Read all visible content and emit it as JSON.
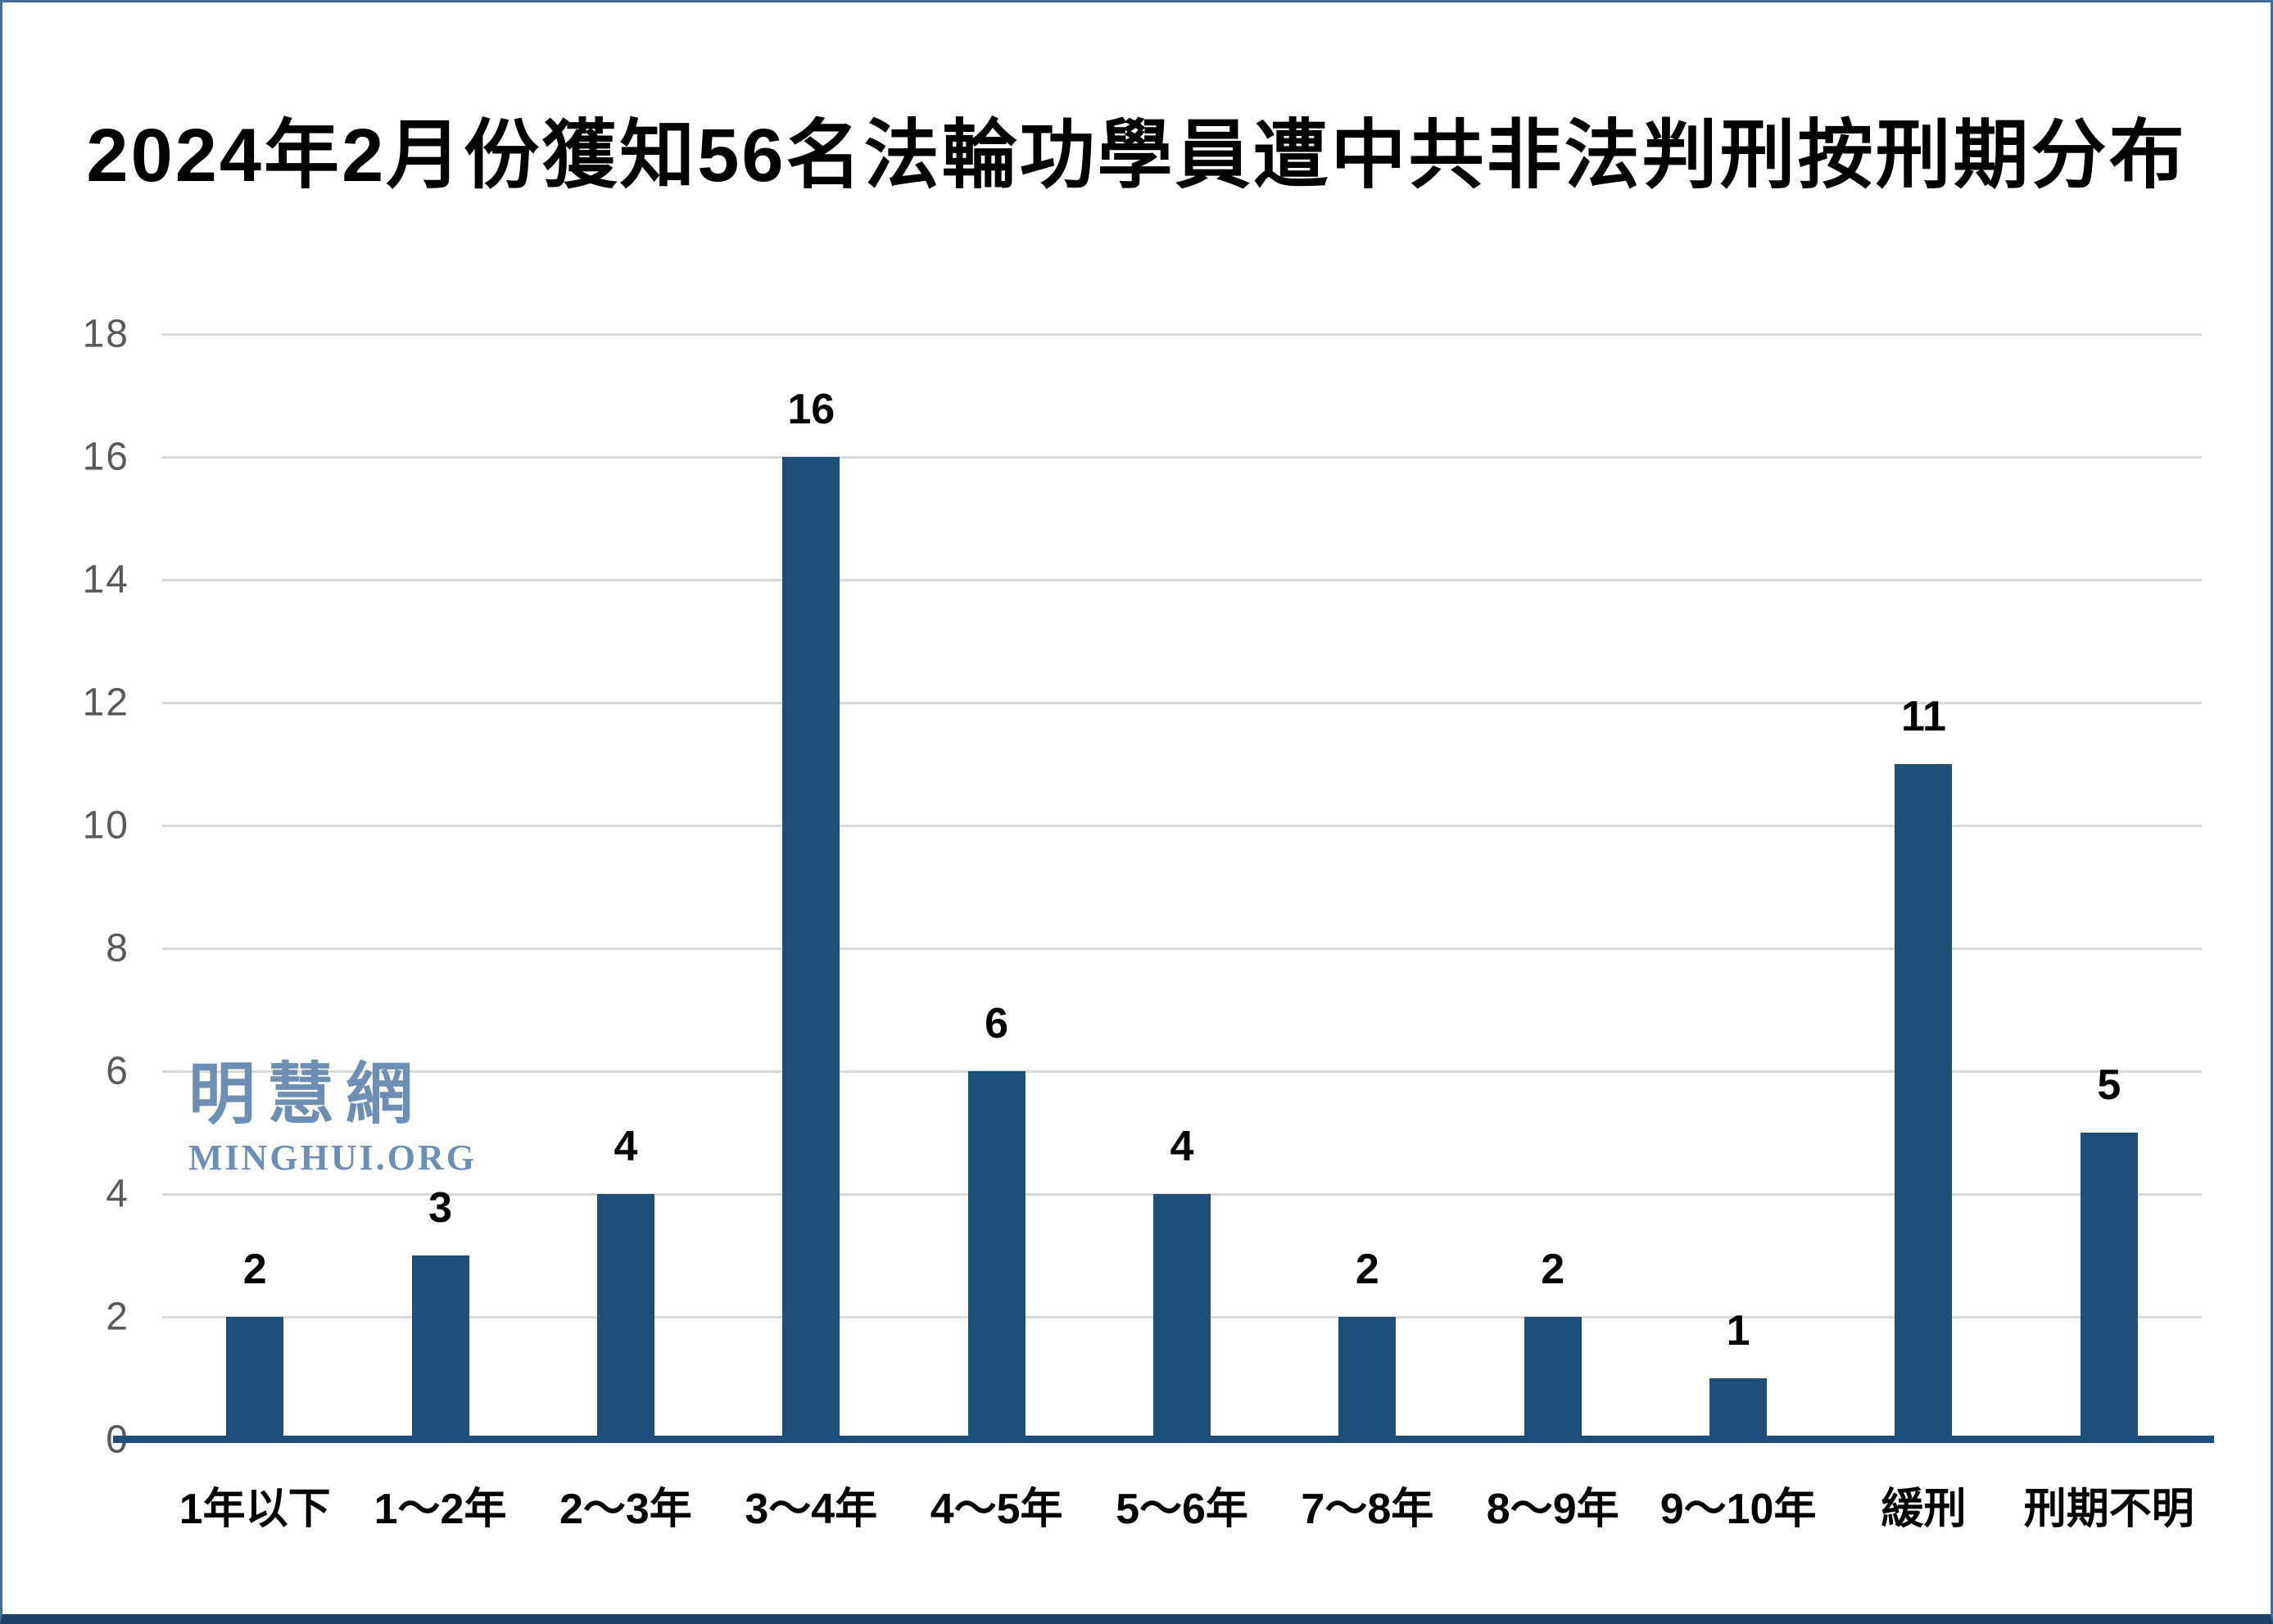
{
  "title": "2024年2月份獲知56名法輪功學員遭中共非法判刑按刑期分布",
  "watermark": {
    "cjk": "明慧網",
    "latin": "MINGHUI.ORG",
    "color": "#6D8FB4"
  },
  "colors": {
    "bar": "#1F4E79",
    "axis_line": "#1F4E79",
    "gridline": "#D9D9D9",
    "y_tick_label": "#595959",
    "frame_border": "#466C96",
    "frame_bottom_bar": "#1B4166",
    "text": "#000000"
  },
  "chart_data": {
    "type": "bar",
    "title": "2024年2月份獲知56名法輪功學員遭中共非法判刑按刑期分布",
    "categories": [
      "1年以下",
      "1～2年",
      "2～3年",
      "3～4年",
      "4～5年",
      "5～6年",
      "7～8年",
      "8～9年",
      "9～10年",
      "緩刑",
      "刑期不明"
    ],
    "values": [
      2,
      3,
      4,
      16,
      6,
      4,
      2,
      2,
      1,
      11,
      5
    ],
    "total": 56,
    "xlabel": "",
    "ylabel": "",
    "ylim": [
      0,
      18
    ],
    "y_ticks": [
      0,
      2,
      4,
      6,
      8,
      10,
      12,
      14,
      16,
      18
    ],
    "grid": "horizontal",
    "legend_position": "none",
    "data_labels": "above-bars"
  }
}
